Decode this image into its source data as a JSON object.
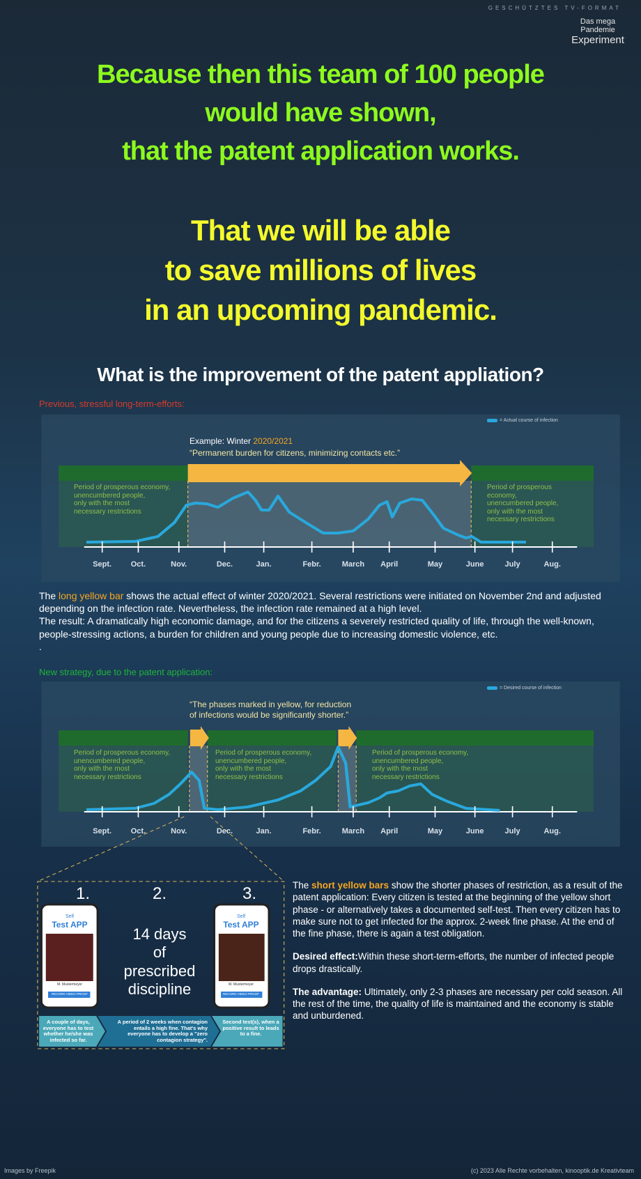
{
  "header": {
    "brand": "GESCHÜTZTES TV-FORMAT",
    "logo": [
      "Das mega",
      "Pandemie",
      "Experiment"
    ]
  },
  "headline": {
    "green_lines": [
      "Because then this team of 100 people",
      "would have shown,",
      "that the patent application works."
    ],
    "yellow_lines": [
      "That we will be able",
      "to save millions of lives",
      "in an upcoming pandemic."
    ]
  },
  "question": "What is the improvement of the patent appliation?",
  "months": [
    "Sept.",
    "Oct.",
    "Nov.",
    "Dec.",
    "Jan.",
    "Febr.",
    "March",
    "April",
    "May",
    "June",
    "July",
    "Aug."
  ],
  "previous": {
    "label": "Previous, stressful long-term-efforts:",
    "legend": "= Actual course of infection",
    "example": "Example: Winter ",
    "example_year": "2020/2021",
    "quote": "“Permanent burden for citizens, minimizing contacts etc.”",
    "left_period": [
      "Period of prosperous economy,",
      "unencumbered people,",
      "only with the most",
      "necessary restrictions"
    ],
    "right_period": [
      "Period of prosperous",
      "economy,",
      "unencumbered people,",
      "only with the most",
      "necessary restrictions"
    ]
  },
  "paragraph": {
    "before": "The ",
    "highlight": "long yellow bar",
    "after": " shows the actual effect of winter 2020/2021.  Several restrictions were initiated on November 2nd and adjusted depending on the infection rate. Nevertheless, the infection rate remained at a high level.",
    "result": "The result: A dramatically high economic damage, and for the citizens a severely restricted quality of life, through the well-known, people-stressing actions, a burden for children and young people due to increasing domestic violence, etc.",
    "tail": "."
  },
  "new_strategy": {
    "label": "New strategy, due to the patent application:",
    "legend": "= Desired course of infection",
    "quote": [
      "“The phases marked in yellow, for reduction",
      "of infections would be significantly shorter.”"
    ],
    "periods": [
      [
        "Period of prosperous economy,",
        "unencumbered people,",
        "only with the most",
        "necessary restrictions"
      ],
      [
        "Period of prosperous economy,",
        "unencumbered people,",
        "only with the most",
        "necessary restrictions"
      ],
      [
        "Period of prosperous economy,",
        "unencumbered people,",
        "only with the most",
        "necessary restrictions"
      ]
    ]
  },
  "steps": {
    "numbers": [
      "1.",
      "2.",
      "3."
    ],
    "discipline": [
      "14 days",
      "of",
      "prescribed",
      "discipline"
    ],
    "phone": {
      "self": "Self",
      "app": "Test APP",
      "name": "M. Mustermeyer",
      "button": "RECORD VIDEO PROOF"
    },
    "captions": [
      "A couple of days, everyone has to test whether he/she was infected so far.",
      "A period of 2 weeks when contagion entails a high fine. That's why everyone has to develop a \"zero contagion strategy\".",
      "Second test(s), when a positive result to leads to a fine."
    ]
  },
  "explanation": {
    "p1_before": "The ",
    "p1_highlight": "short yellow bars",
    "p1_after": " show the shorter phases of restriction, as a result of the patent application: Every citizen is tested at the beginning of the yellow short phase - or alternatively takes a documented self-test. Then every citizen has to make sure not to get infected for the approx. 2-week fine phase. At the end of the fine phase, there is again a test obligation.",
    "p2_bold": "Desired effect:",
    "p2_text": "Within these short-term-efforts, the number of infected people drops drastically.",
    "p3_bold": "The advantage:",
    "p3_text": " Ultimately, only 2-3 phases are necessary per cold season. All the rest of the time, the quality of life is maintained and the economy is stable and unburdened."
  },
  "footer": {
    "left": "Images by Freepik",
    "right": "(c) 2023 Alle Rechte vorbehalten, kinooptik.de Kreativteam"
  }
}
